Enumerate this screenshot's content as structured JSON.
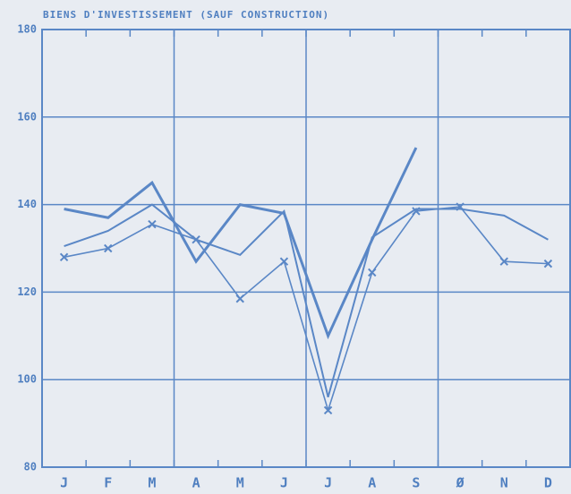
{
  "chart_data": {
    "type": "line",
    "title": "BIENS D'INVESTISSEMENT (SAUF CONSTRUCTION)",
    "categories": [
      "J",
      "F",
      "M",
      "A",
      "M",
      "J",
      "J",
      "A",
      "S",
      "Ø",
      "N",
      "D"
    ],
    "series": [
      {
        "color": "#5a87c6",
        "width": 3,
        "marker": "none",
        "values": [
          139,
          137,
          145,
          127,
          140,
          138,
          110,
          132,
          153,
          null,
          null,
          null
        ]
      },
      {
        "color": "#5a87c6",
        "width": 2,
        "marker": "none",
        "values": [
          130.5,
          134,
          140,
          132,
          128.5,
          138.5,
          96,
          132.5,
          139,
          139,
          137.5,
          132
        ]
      },
      {
        "color": "#5a87c6",
        "width": 1.6,
        "marker": "x",
        "values": [
          128,
          130,
          135.5,
          132,
          118.5,
          127,
          93,
          124.5,
          138.5,
          139.5,
          127,
          126.5
        ]
      }
    ],
    "ylim": [
      80,
      180
    ],
    "yticks": [
      80,
      100,
      120,
      140,
      160,
      180
    ],
    "grid": true
  }
}
